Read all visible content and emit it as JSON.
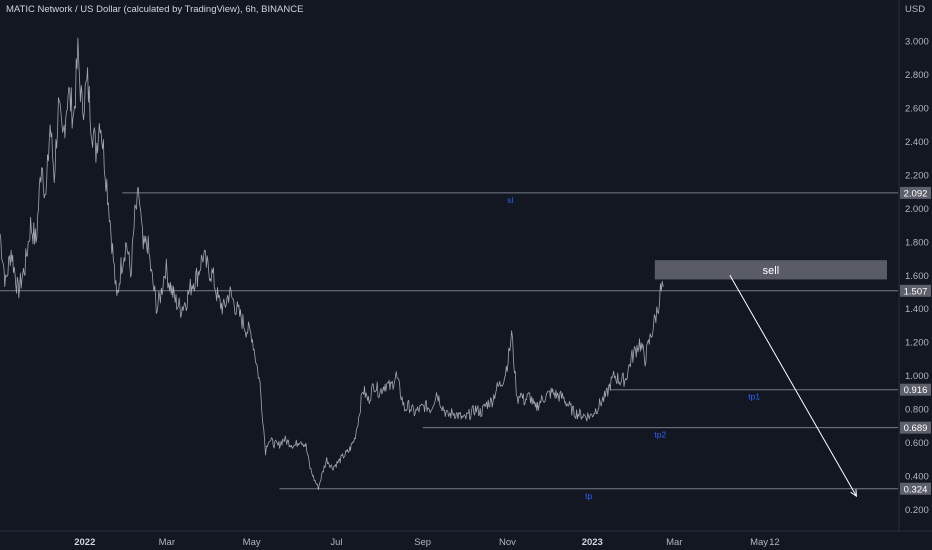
{
  "header": {
    "title": "MATIC Network / US Dollar (calculated by TradingView), 6h, BINANCE",
    "currency": "USD"
  },
  "colors": {
    "background": "#131722",
    "price_line": "#b2b5be",
    "level_line": "#787b86",
    "label_box": "#5d606b",
    "sell_box": "#5d606b",
    "annotation_text": "#2962ff",
    "arrow": "#ffffff"
  },
  "chart_data": {
    "type": "line",
    "title": "MATIC Network / US Dollar (calculated by TradingView), 6h, BINANCE",
    "xlabel": "",
    "ylabel": "USD",
    "x_ticks": [
      {
        "label": "2022",
        "date": "2022-01-01",
        "bold": true
      },
      {
        "label": "Mar",
        "date": "2022-03-01",
        "bold": false
      },
      {
        "label": "May",
        "date": "2022-05-01",
        "bold": false
      },
      {
        "label": "Jul",
        "date": "2022-07-01",
        "bold": false
      },
      {
        "label": "Sep",
        "date": "2022-09-01",
        "bold": false
      },
      {
        "label": "Nov",
        "date": "2022-11-01",
        "bold": false
      },
      {
        "label": "2023",
        "date": "2023-01-01",
        "bold": true
      },
      {
        "label": "Mar",
        "date": "2023-03-01",
        "bold": false
      },
      {
        "label": "May",
        "date": "2023-05-01",
        "bold": false
      },
      {
        "label": "12",
        "date": "2023-05-12",
        "bold": false
      }
    ],
    "y_ticks": [
      "3.000",
      "2.800",
      "2.600",
      "2.400",
      "2.200",
      "2.000",
      "1.800",
      "1.600",
      "1.400",
      "1.200",
      "1.000",
      "0.800",
      "0.600",
      "0.400",
      "0.200"
    ],
    "ylim": [
      0.12,
      3.25
    ],
    "xlim": [
      "2021-11-01",
      "2023-08-01"
    ],
    "series": [
      {
        "points": [
          [
            "2021-11-01",
            1.85
          ],
          [
            "2021-11-05",
            1.55
          ],
          [
            "2021-11-09",
            1.75
          ],
          [
            "2021-11-14",
            1.5
          ],
          [
            "2021-11-19",
            1.65
          ],
          [
            "2021-11-23",
            1.9
          ],
          [
            "2021-11-27",
            1.8
          ],
          [
            "2021-12-01",
            2.3
          ],
          [
            "2021-12-04",
            2.05
          ],
          [
            "2021-12-07",
            2.5
          ],
          [
            "2021-12-10",
            2.2
          ],
          [
            "2021-12-13",
            2.6
          ],
          [
            "2021-12-16",
            2.4
          ],
          [
            "2021-12-20",
            2.7
          ],
          [
            "2021-12-24",
            2.55
          ],
          [
            "2021-12-27",
            2.92
          ],
          [
            "2021-12-30",
            2.6
          ],
          [
            "2022-01-03",
            2.75
          ],
          [
            "2022-01-06",
            2.5
          ],
          [
            "2022-01-09",
            2.35
          ],
          [
            "2022-01-12",
            2.55
          ],
          [
            "2022-01-15",
            2.3
          ],
          [
            "2022-01-18",
            2.05
          ],
          [
            "2022-01-21",
            1.75
          ],
          [
            "2022-01-24",
            1.45
          ],
          [
            "2022-01-27",
            1.65
          ],
          [
            "2022-01-31",
            1.8
          ],
          [
            "2022-02-03",
            1.6
          ],
          [
            "2022-02-06",
            1.95
          ],
          [
            "2022-02-09",
            2.08
          ],
          [
            "2022-02-12",
            1.75
          ],
          [
            "2022-02-15",
            1.8
          ],
          [
            "2022-02-18",
            1.6
          ],
          [
            "2022-02-22",
            1.4
          ],
          [
            "2022-02-25",
            1.5
          ],
          [
            "2022-02-28",
            1.65
          ],
          [
            "2022-03-03",
            1.55
          ],
          [
            "2022-03-07",
            1.45
          ],
          [
            "2022-03-11",
            1.4
          ],
          [
            "2022-03-15",
            1.45
          ],
          [
            "2022-03-19",
            1.55
          ],
          [
            "2022-03-23",
            1.6
          ],
          [
            "2022-03-27",
            1.72
          ],
          [
            "2022-03-30",
            1.65
          ],
          [
            "2022-04-03",
            1.6
          ],
          [
            "2022-04-07",
            1.45
          ],
          [
            "2022-04-11",
            1.4
          ],
          [
            "2022-04-15",
            1.5
          ],
          [
            "2022-04-19",
            1.42
          ],
          [
            "2022-04-23",
            1.35
          ],
          [
            "2022-04-27",
            1.28
          ],
          [
            "2022-05-01",
            1.25
          ],
          [
            "2022-05-04",
            1.1
          ],
          [
            "2022-05-07",
            0.95
          ],
          [
            "2022-05-09",
            0.75
          ],
          [
            "2022-05-11",
            0.55
          ],
          [
            "2022-05-13",
            0.62
          ],
          [
            "2022-05-16",
            0.6
          ],
          [
            "2022-05-20",
            0.58
          ],
          [
            "2022-05-24",
            0.62
          ],
          [
            "2022-05-28",
            0.6
          ],
          [
            "2022-06-01",
            0.58
          ],
          [
            "2022-06-05",
            0.62
          ],
          [
            "2022-06-09",
            0.58
          ],
          [
            "2022-06-12",
            0.45
          ],
          [
            "2022-06-15",
            0.38
          ],
          [
            "2022-06-18",
            0.33
          ],
          [
            "2022-06-21",
            0.42
          ],
          [
            "2022-06-24",
            0.5
          ],
          [
            "2022-06-28",
            0.45
          ],
          [
            "2022-07-02",
            0.48
          ],
          [
            "2022-07-06",
            0.52
          ],
          [
            "2022-07-10",
            0.55
          ],
          [
            "2022-07-14",
            0.62
          ],
          [
            "2022-07-17",
            0.75
          ],
          [
            "2022-07-20",
            0.92
          ],
          [
            "2022-07-24",
            0.85
          ],
          [
            "2022-07-28",
            0.95
          ],
          [
            "2022-08-01",
            0.9
          ],
          [
            "2022-08-05",
            0.95
          ],
          [
            "2022-08-09",
            0.93
          ],
          [
            "2022-08-13",
            1.0
          ],
          [
            "2022-08-16",
            0.9
          ],
          [
            "2022-08-19",
            0.8
          ],
          [
            "2022-08-22",
            0.82
          ],
          [
            "2022-08-26",
            0.78
          ],
          [
            "2022-08-30",
            0.8
          ],
          [
            "2022-09-03",
            0.82
          ],
          [
            "2022-09-07",
            0.8
          ],
          [
            "2022-09-11",
            0.9
          ],
          [
            "2022-09-15",
            0.82
          ],
          [
            "2022-09-19",
            0.76
          ],
          [
            "2022-09-23",
            0.78
          ],
          [
            "2022-09-27",
            0.76
          ],
          [
            "2022-10-01",
            0.74
          ],
          [
            "2022-10-05",
            0.77
          ],
          [
            "2022-10-09",
            0.8
          ],
          [
            "2022-10-13",
            0.78
          ],
          [
            "2022-10-17",
            0.83
          ],
          [
            "2022-10-21",
            0.85
          ],
          [
            "2022-10-24",
            0.92
          ],
          [
            "2022-10-27",
            0.95
          ],
          [
            "2022-10-30",
            1.0
          ],
          [
            "2022-11-02",
            1.12
          ],
          [
            "2022-11-04",
            1.25
          ],
          [
            "2022-11-06",
            1.05
          ],
          [
            "2022-11-08",
            0.85
          ],
          [
            "2022-11-10",
            0.9
          ],
          [
            "2022-11-13",
            0.85
          ],
          [
            "2022-11-17",
            0.88
          ],
          [
            "2022-11-21",
            0.8
          ],
          [
            "2022-11-25",
            0.85
          ],
          [
            "2022-11-29",
            0.88
          ],
          [
            "2022-12-03",
            0.9
          ],
          [
            "2022-12-07",
            0.88
          ],
          [
            "2022-12-11",
            0.87
          ],
          [
            "2022-12-15",
            0.82
          ],
          [
            "2022-12-19",
            0.78
          ],
          [
            "2022-12-23",
            0.77
          ],
          [
            "2022-12-27",
            0.76
          ],
          [
            "2022-12-31",
            0.76
          ],
          [
            "2023-01-04",
            0.8
          ],
          [
            "2023-01-08",
            0.85
          ],
          [
            "2023-01-11",
            0.88
          ],
          [
            "2023-01-14",
            0.95
          ],
          [
            "2023-01-17",
            1.0
          ],
          [
            "2023-01-21",
            0.97
          ],
          [
            "2023-01-25",
            0.98
          ],
          [
            "2023-01-29",
            1.1
          ],
          [
            "2023-02-01",
            1.15
          ],
          [
            "2023-02-04",
            1.2
          ],
          [
            "2023-02-08",
            1.1
          ],
          [
            "2023-02-11",
            1.2
          ],
          [
            "2023-02-14",
            1.3
          ],
          [
            "2023-02-17",
            1.4
          ],
          [
            "2023-02-19",
            1.5
          ],
          [
            "2023-02-21",
            1.53
          ]
        ]
      }
    ],
    "levels": [
      {
        "price": 2.092,
        "label": "2.092",
        "annotation": "sl",
        "start": "2022-01-28"
      },
      {
        "price": 1.507,
        "label": "1.507",
        "annotation": "",
        "start": "2021-11-01"
      },
      {
        "price": 0.916,
        "label": "0.916",
        "annotation": "tp1",
        "start": "2023-01-14"
      },
      {
        "price": 0.689,
        "label": "0.689",
        "annotation": "tp2",
        "start": "2022-09-01"
      },
      {
        "price": 0.324,
        "label": "0.324",
        "annotation": "tp",
        "start": "2022-05-21"
      }
    ],
    "sell_zone": {
      "label": "sell",
      "price_low": 1.575,
      "price_high": 1.69,
      "start": "2023-02-15",
      "end": "2023-08-01"
    },
    "arrow": {
      "from_date": "2023-04-10",
      "from_price": 1.6,
      "to_date": "2023-07-10",
      "to_price": 0.28
    }
  }
}
